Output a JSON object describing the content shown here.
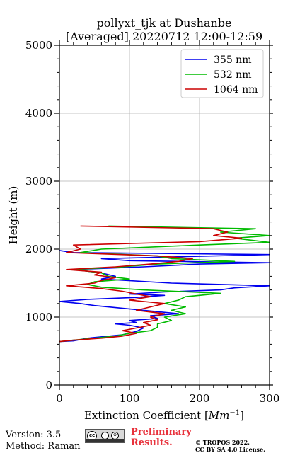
{
  "chart_data": {
    "type": "line",
    "title": "pollyxt_tjk at Dushanbe",
    "subtitle": "[Averaged] 20220712 12:00-12:59",
    "xlabel": "Extinction Coefficient",
    "xlabel_unit_base": "Mm",
    "xlabel_unit_exp": "−1",
    "ylabel": "Height (m)",
    "xlim": [
      0,
      300
    ],
    "ylim": [
      0,
      5000
    ],
    "xticks": [
      "0",
      "100",
      "200",
      "300"
    ],
    "yticks": [
      "0",
      "1000",
      "2000",
      "3000",
      "4000",
      "5000"
    ],
    "grid": true,
    "legend_position": "top-right",
    "series": [
      {
        "name": "355 nm",
        "color": "#0000ee",
        "points": [
          [
            0,
            640
          ],
          [
            20,
            650
          ],
          [
            40,
            690
          ],
          [
            70,
            720
          ],
          [
            90,
            740
          ],
          [
            110,
            790
          ],
          [
            120,
            840
          ],
          [
            100,
            880
          ],
          [
            80,
            900
          ],
          [
            110,
            920
          ],
          [
            100,
            950
          ],
          [
            140,
            980
          ],
          [
            130,
            1020
          ],
          [
            170,
            1050
          ],
          [
            140,
            1080
          ],
          [
            110,
            1110
          ],
          [
            80,
            1140
          ],
          [
            50,
            1170
          ],
          [
            30,
            1200
          ],
          [
            0,
            1230
          ],
          [
            40,
            1260
          ],
          [
            110,
            1290
          ],
          [
            150,
            1320
          ],
          [
            100,
            1340
          ],
          [
            150,
            1370
          ],
          [
            230,
            1400
          ],
          [
            250,
            1430
          ],
          [
            300,
            1460
          ],
          [
            160,
            1500
          ],
          [
            60,
            1560
          ],
          [
            80,
            1600
          ],
          [
            60,
            1650
          ],
          [
            20,
            1700
          ],
          [
            120,
            1740
          ],
          [
            200,
            1780
          ],
          [
            300,
            1800
          ],
          [
            100,
            1830
          ],
          [
            60,
            1860
          ],
          [
            300,
            1920
          ],
          [
            20,
            1950
          ],
          [
            0,
            1980
          ]
        ]
      },
      {
        "name": "532 nm",
        "color": "#00bb00",
        "points": [
          [
            0,
            640
          ],
          [
            20,
            660
          ],
          [
            50,
            690
          ],
          [
            80,
            720
          ],
          [
            100,
            760
          ],
          [
            130,
            800
          ],
          [
            140,
            850
          ],
          [
            140,
            900
          ],
          [
            160,
            950
          ],
          [
            150,
            1000
          ],
          [
            180,
            1050
          ],
          [
            160,
            1100
          ],
          [
            180,
            1150
          ],
          [
            150,
            1200
          ],
          [
            170,
            1250
          ],
          [
            180,
            1300
          ],
          [
            230,
            1350
          ],
          [
            120,
            1400
          ],
          [
            60,
            1440
          ],
          [
            40,
            1480
          ],
          [
            50,
            1520
          ],
          [
            100,
            1560
          ],
          [
            70,
            1600
          ],
          [
            60,
            1650
          ],
          [
            20,
            1700
          ],
          [
            90,
            1740
          ],
          [
            140,
            1780
          ],
          [
            250,
            1820
          ],
          [
            160,
            1860
          ],
          [
            140,
            1900
          ],
          [
            30,
            1950
          ],
          [
            60,
            2000
          ],
          [
            200,
            2060
          ],
          [
            300,
            2100
          ],
          [
            250,
            2160
          ],
          [
            300,
            2200
          ],
          [
            230,
            2250
          ],
          [
            280,
            2300
          ],
          [
            70,
            2340
          ]
        ]
      },
      {
        "name": "1064 nm",
        "color": "#cc0000",
        "points": [
          [
            0,
            640
          ],
          [
            20,
            660
          ],
          [
            60,
            690
          ],
          [
            90,
            720
          ],
          [
            110,
            760
          ],
          [
            90,
            800
          ],
          [
            110,
            840
          ],
          [
            130,
            880
          ],
          [
            120,
            920
          ],
          [
            140,
            960
          ],
          [
            130,
            1000
          ],
          [
            150,
            1050
          ],
          [
            110,
            1100
          ],
          [
            130,
            1150
          ],
          [
            150,
            1200
          ],
          [
            100,
            1250
          ],
          [
            130,
            1300
          ],
          [
            110,
            1340
          ],
          [
            90,
            1380
          ],
          [
            60,
            1420
          ],
          [
            10,
            1460
          ],
          [
            50,
            1500
          ],
          [
            60,
            1540
          ],
          [
            80,
            1580
          ],
          [
            50,
            1620
          ],
          [
            60,
            1660
          ],
          [
            10,
            1700
          ],
          [
            80,
            1740
          ],
          [
            130,
            1780
          ],
          [
            170,
            1820
          ],
          [
            190,
            1860
          ],
          [
            140,
            1900
          ],
          [
            10,
            1950
          ],
          [
            30,
            2000
          ],
          [
            20,
            2060
          ],
          [
            200,
            2110
          ],
          [
            260,
            2160
          ],
          [
            220,
            2200
          ],
          [
            240,
            2250
          ],
          [
            220,
            2300
          ],
          [
            30,
            2340
          ]
        ]
      }
    ]
  },
  "footer": {
    "version": "Version: 3.5",
    "method": "Method: Raman",
    "cc_glyph": "cc",
    "by_glyph": "i",
    "sa_glyph": "⊙",
    "prelim_line1": "Preliminary",
    "prelim_line2": "Results.",
    "copyright_line1": "© TROPOS 2022.",
    "copyright_line2": "CC BY SA 4.0 License."
  }
}
